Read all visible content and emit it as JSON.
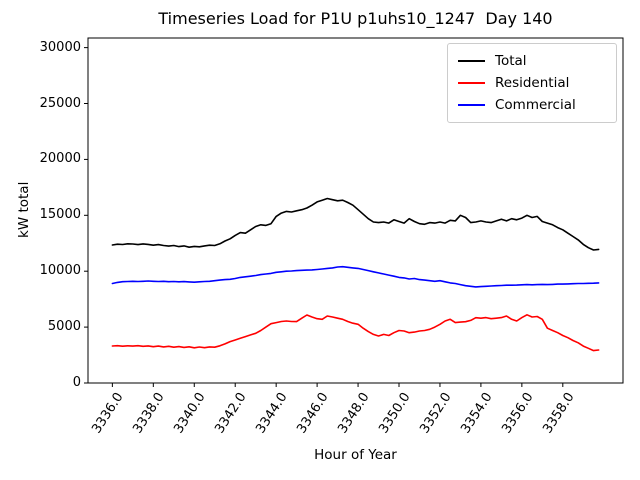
{
  "chart_data": {
    "type": "line",
    "title": "Timeseries Load for P1U p1uhs10_1247  Day 140",
    "xlabel": "Hour of Year",
    "ylabel": "kW total",
    "grid": false,
    "legend_position": "upper right",
    "xlim": [
      3334.81,
      3360.94
    ],
    "ylim": [
      0,
      30860
    ],
    "xticks": {
      "values": [
        3336,
        3338,
        3340,
        3342,
        3344,
        3346,
        3348,
        3350,
        3352,
        3354,
        3356,
        3358
      ],
      "labels": [
        "3336.0",
        "3338.0",
        "3340.0",
        "3342.0",
        "3344.0",
        "3346.0",
        "3348.0",
        "3350.0",
        "3352.0",
        "3354.0",
        "3356.0",
        "3358.0"
      ]
    },
    "yticks": {
      "values": [
        0,
        5000,
        10000,
        15000,
        20000,
        25000,
        30000
      ],
      "labels": [
        "0",
        "5000",
        "10000",
        "15000",
        "20000",
        "25000",
        "30000"
      ]
    },
    "x_start": 3336.0,
    "x_step": 0.25,
    "x_end": 3359.75,
    "series": [
      {
        "name": "Total",
        "color": "#000000",
        "values": [
          12340,
          12420,
          12390,
          12450,
          12430,
          12380,
          12440,
          12400,
          12330,
          12380,
          12300,
          12250,
          12300,
          12200,
          12260,
          12150,
          12220,
          12180,
          12260,
          12330,
          12300,
          12450,
          12700,
          12900,
          13200,
          13450,
          13400,
          13700,
          14000,
          14150,
          14100,
          14250,
          14900,
          15200,
          15350,
          15300,
          15400,
          15500,
          15650,
          15900,
          16200,
          16350,
          16500,
          16400,
          16300,
          16350,
          16150,
          15900,
          15500,
          15100,
          14700,
          14400,
          14350,
          14400,
          14300,
          14600,
          14450,
          14300,
          14700,
          14450,
          14250,
          14200,
          14350,
          14300,
          14400,
          14300,
          14550,
          14500,
          15000,
          14800,
          14350,
          14400,
          14500,
          14400,
          14350,
          14500,
          14650,
          14500,
          14700,
          14600,
          14750,
          15000,
          14800,
          14900,
          14450,
          14300,
          14150,
          13900,
          13700,
          13400,
          13100,
          12800,
          12400,
          12100,
          11900,
          11950
        ]
      },
      {
        "name": "Residential",
        "color": "#ff0000",
        "values": [
          3310,
          3340,
          3290,
          3330,
          3300,
          3340,
          3280,
          3320,
          3250,
          3300,
          3230,
          3280,
          3200,
          3260,
          3180,
          3240,
          3150,
          3220,
          3160,
          3230,
          3200,
          3330,
          3500,
          3700,
          3850,
          4000,
          4150,
          4300,
          4450,
          4700,
          5000,
          5300,
          5400,
          5500,
          5550,
          5500,
          5490,
          5800,
          6080,
          5900,
          5750,
          5700,
          5990,
          5900,
          5800,
          5700,
          5500,
          5350,
          5250,
          4900,
          4600,
          4350,
          4200,
          4350,
          4250,
          4500,
          4700,
          4650,
          4500,
          4550,
          4650,
          4700,
          4800,
          5000,
          5250,
          5550,
          5700,
          5400,
          5450,
          5480,
          5600,
          5840,
          5800,
          5850,
          5750,
          5800,
          5850,
          5990,
          5700,
          5550,
          5850,
          6100,
          5900,
          5950,
          5700,
          4900,
          4700,
          4500,
          4250,
          4050,
          3800,
          3600,
          3300,
          3100,
          2900,
          2950
        ]
      },
      {
        "name": "Commercial",
        "color": "#0000ff",
        "values": [
          8900,
          9000,
          9060,
          9080,
          9100,
          9080,
          9100,
          9120,
          9100,
          9080,
          9100,
          9060,
          9080,
          9050,
          9070,
          9040,
          9020,
          9050,
          9080,
          9100,
          9150,
          9200,
          9250,
          9280,
          9350,
          9450,
          9500,
          9550,
          9620,
          9700,
          9750,
          9800,
          9900,
          9950,
          10000,
          10020,
          10050,
          10080,
          10100,
          10120,
          10150,
          10200,
          10250,
          10300,
          10380,
          10400,
          10350,
          10300,
          10250,
          10150,
          10050,
          9950,
          9850,
          9750,
          9650,
          9550,
          9450,
          9400,
          9300,
          9350,
          9250,
          9200,
          9150,
          9100,
          9150,
          9050,
          8950,
          8900,
          8800,
          8700,
          8650,
          8600,
          8620,
          8650,
          8680,
          8700,
          8720,
          8750,
          8750,
          8760,
          8780,
          8800,
          8780,
          8800,
          8820,
          8800,
          8820,
          8850,
          8850,
          8860,
          8880,
          8900,
          8900,
          8920,
          8930,
          8950
        ]
      }
    ]
  }
}
